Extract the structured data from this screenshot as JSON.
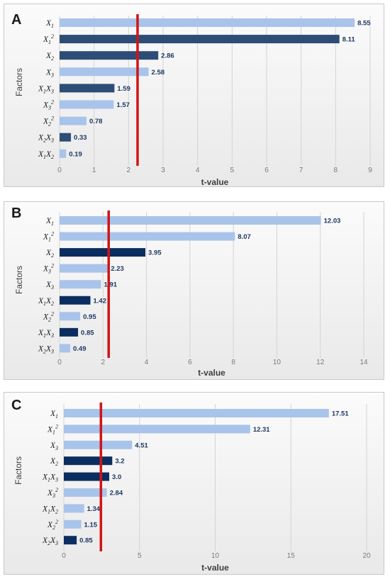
{
  "colors": {
    "light": "#a9c4ea",
    "dark_a": "#2e4d76",
    "dark": "#0c2d5f",
    "threshold": "#d11414",
    "grid": "#d4d4d4"
  },
  "chart_data": [
    {
      "type": "bar",
      "orientation": "horizontal",
      "panel_label": "A",
      "categories": [
        "X1",
        "X1^2",
        "X2",
        "X3",
        "X1X3",
        "X3^2",
        "X2^2",
        "X2X3",
        "X1X2"
      ],
      "category_labels": [
        {
          "base": "X",
          "sub": "1",
          "sup": ""
        },
        {
          "base": "X",
          "sub": "1",
          "sup": "2"
        },
        {
          "base": "X",
          "sub": "2",
          "sup": ""
        },
        {
          "base": "X",
          "sub": "3",
          "sup": ""
        },
        {
          "base": "X",
          "sub": "1",
          "base2": "X",
          "sub2": "3",
          "sup": ""
        },
        {
          "base": "X",
          "sub": "3",
          "sup": "2"
        },
        {
          "base": "X",
          "sub": "2",
          "sup": "2"
        },
        {
          "base": "X",
          "sub": "2",
          "base2": "X",
          "sub2": "3",
          "sup": ""
        },
        {
          "base": "X",
          "sub": "1",
          "base2": "X",
          "sub2": "2",
          "sup": ""
        }
      ],
      "values": [
        8.55,
        8.11,
        2.86,
        2.58,
        1.59,
        1.57,
        0.78,
        0.33,
        0.19
      ],
      "value_labels": [
        "8.55",
        "8.11",
        "2.86",
        "2.58",
        "1.59",
        "1.57",
        "0.78",
        "0.33",
        "0.19"
      ],
      "bar_shade": [
        "light",
        "dark_a",
        "dark_a",
        "light",
        "dark_a",
        "light",
        "light",
        "dark_a",
        "light"
      ],
      "xlim": [
        0,
        9
      ],
      "xticks": [
        0,
        1,
        2,
        3,
        4,
        5,
        6,
        7,
        8,
        9
      ],
      "threshold": 2.26,
      "xlabel": "t-value",
      "ylabel": "Factors",
      "grid": true
    },
    {
      "type": "bar",
      "orientation": "horizontal",
      "panel_label": "B",
      "categories": [
        "X1",
        "X1^2",
        "X2",
        "X3^2",
        "X3",
        "X1X2",
        "X2^2",
        "X1X3",
        "X2X3"
      ],
      "category_labels": [
        {
          "base": "X",
          "sub": "1",
          "sup": ""
        },
        {
          "base": "X",
          "sub": "1",
          "sup": "2"
        },
        {
          "base": "X",
          "sub": "2",
          "sup": ""
        },
        {
          "base": "X",
          "sub": "3",
          "sup": "2"
        },
        {
          "base": "X",
          "sub": "3",
          "sup": ""
        },
        {
          "base": "X",
          "sub": "1",
          "base2": "X",
          "sub2": "2",
          "sup": ""
        },
        {
          "base": "X",
          "sub": "2",
          "sup": "2"
        },
        {
          "base": "X",
          "sub": "1",
          "base2": "X",
          "sub2": "3",
          "sup": ""
        },
        {
          "base": "X",
          "sub": "2",
          "base2": "X",
          "sub2": "3",
          "sup": ""
        }
      ],
      "values": [
        12.03,
        8.07,
        3.95,
        2.23,
        1.91,
        1.42,
        0.95,
        0.85,
        0.49
      ],
      "value_labels": [
        "12.03",
        "8.07",
        "3.95",
        "2.23",
        "1.91",
        "1.42",
        "0.95",
        "0.85",
        "0.49"
      ],
      "bar_shade": [
        "light",
        "light",
        "dark",
        "light",
        "light",
        "dark",
        "light",
        "dark",
        "light"
      ],
      "xlim": [
        0,
        14
      ],
      "xticks": [
        0,
        2,
        4,
        6,
        8,
        10,
        12,
        14
      ],
      "threshold": 2.26,
      "xlabel": "t-value",
      "ylabel": "Factors",
      "grid": true
    },
    {
      "type": "bar",
      "orientation": "horizontal",
      "panel_label": "C",
      "categories": [
        "X1",
        "X1^2",
        "X3",
        "X2",
        "X1X3",
        "X3^2",
        "X1X2",
        "X2^2",
        "X2X3"
      ],
      "category_labels": [
        {
          "base": "X",
          "sub": "1",
          "sup": ""
        },
        {
          "base": "X",
          "sub": "1",
          "sup": "2"
        },
        {
          "base": "X",
          "sub": "3",
          "sup": ""
        },
        {
          "base": "X",
          "sub": "2",
          "sup": ""
        },
        {
          "base": "X",
          "sub": "1",
          "base2": "X",
          "sub2": "3",
          "sup": ""
        },
        {
          "base": "X",
          "sub": "3",
          "sup": "2"
        },
        {
          "base": "X",
          "sub": "1",
          "base2": "X",
          "sub2": "2",
          "sup": ""
        },
        {
          "base": "X",
          "sub": "2",
          "sup": "2"
        },
        {
          "base": "X",
          "sub": "2",
          "base2": "X",
          "sub2": "3",
          "sup": ""
        }
      ],
      "values": [
        17.51,
        12.31,
        4.51,
        3.2,
        3.0,
        2.84,
        1.34,
        1.15,
        0.85
      ],
      "value_labels": [
        "17.51",
        "12.31",
        "4.51",
        "3.2",
        "3.0",
        "2.84",
        "1.34",
        "1.15",
        "0.85"
      ],
      "bar_shade": [
        "light",
        "light",
        "light",
        "dark",
        "dark",
        "light",
        "light",
        "light",
        "dark"
      ],
      "xlim": [
        0,
        20
      ],
      "xticks": [
        0,
        5,
        10,
        15,
        20
      ],
      "threshold": 2.45,
      "xlabel": "t-value",
      "ylabel": "Factors",
      "grid": true
    }
  ]
}
